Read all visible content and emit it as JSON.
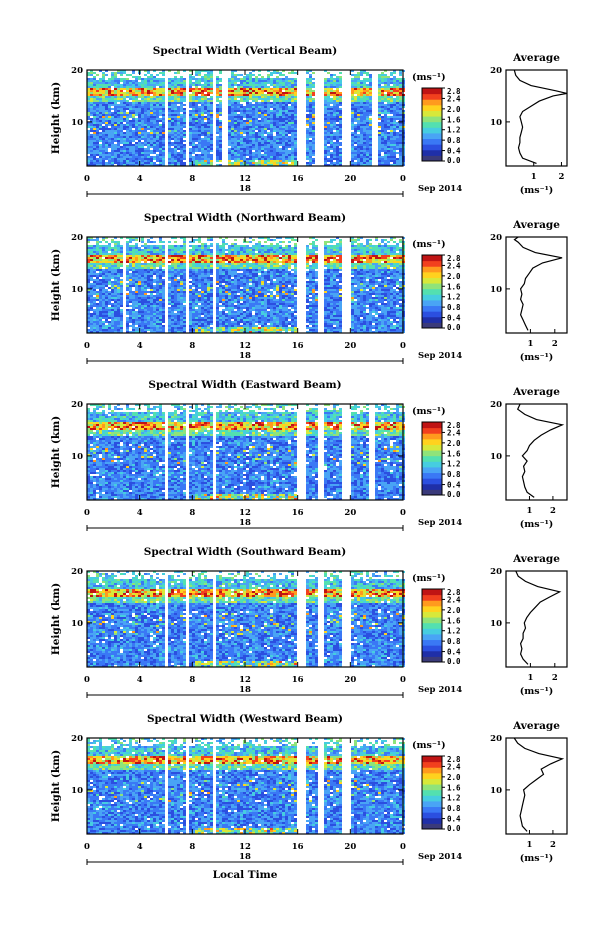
{
  "figure": {
    "date_label": "Sep 2014",
    "xlabel": "Local Time",
    "colorbar_unit": "(ms⁻¹)",
    "average_title": "Average",
    "average_xlabel": "(ms⁻¹)",
    "colormap": [
      "#3a3a7a",
      "#1f2fa8",
      "#2b4fe0",
      "#3a78f5",
      "#49a4f5",
      "#46cde0",
      "#53e0b0",
      "#8fe37a",
      "#d7e83a",
      "#ffd21e",
      "#ff9a1e",
      "#f2401e",
      "#c01414"
    ]
  },
  "chart_data": [
    {
      "type": "heatmap",
      "title": "Spectral Width (Vertical Beam)",
      "ylabel": "Height (km)",
      "x_ticks": [
        "0",
        "4",
        "8",
        "12",
        "16",
        "20",
        "0"
      ],
      "x_range": [
        0,
        24
      ],
      "y_ticks": [
        "10",
        "20"
      ],
      "y_range": [
        1.5,
        20
      ],
      "day_marker": "18",
      "colorbar_ticks": [
        "0.0",
        "0.4",
        "0.8",
        "1.2",
        "1.6",
        "2.0",
        "2.4",
        "2.8"
      ],
      "colorbar_range": [
        0,
        2.8
      ],
      "data_gaps_hours": [
        [
          5.8,
          6.0
        ],
        [
          7.3,
          7.7
        ],
        [
          9.5,
          9.7
        ],
        [
          10.2,
          10.6
        ],
        [
          15.8,
          16.5
        ],
        [
          17.3,
          17.8
        ],
        [
          19.2,
          20.0
        ],
        [
          21.5,
          22.0
        ]
      ],
      "average_profile": {
        "x_ticks": [
          "1",
          "2"
        ],
        "x_range": [
          0,
          2.2
        ],
        "y_ticks": [
          "10",
          "20"
        ],
        "y_range": [
          1.5,
          20
        ],
        "height_km": [
          2,
          3,
          4,
          5,
          6,
          7,
          8,
          9,
          10,
          11,
          12,
          13,
          14,
          15,
          15.5,
          16,
          17,
          18,
          19,
          20
        ],
        "value_ms": [
          1.1,
          0.6,
          0.5,
          0.45,
          0.5,
          0.5,
          0.55,
          0.6,
          0.55,
          0.5,
          0.6,
          0.9,
          1.2,
          1.7,
          2.2,
          1.8,
          0.9,
          0.5,
          0.35,
          0.3
        ]
      }
    },
    {
      "type": "heatmap",
      "title": "Spectral Width (Northward Beam)",
      "ylabel": "Height (km)",
      "x_ticks": [
        "0",
        "4",
        "8",
        "12",
        "16",
        "20",
        "0"
      ],
      "x_range": [
        0,
        24
      ],
      "y_ticks": [
        "10",
        "20"
      ],
      "y_range": [
        1.5,
        20
      ],
      "day_marker": "18",
      "colorbar_ticks": [
        "0.0",
        "0.4",
        "0.8",
        "1.2",
        "1.6",
        "2.0",
        "2.4",
        "2.8"
      ],
      "colorbar_range": [
        0,
        2.8
      ],
      "data_gaps_hours": [
        [
          2.7,
          2.9
        ],
        [
          5.8,
          6.0
        ],
        [
          7.3,
          7.7
        ],
        [
          9.5,
          9.7
        ],
        [
          15.8,
          16.6
        ],
        [
          17.4,
          17.8
        ],
        [
          19.3,
          20.0
        ]
      ],
      "average_profile": {
        "x_ticks": [
          "1",
          "2"
        ],
        "x_range": [
          0,
          2.5
        ],
        "y_ticks": [
          "10",
          "20"
        ],
        "y_range": [
          1.5,
          20
        ],
        "height_km": [
          2,
          3,
          4,
          5,
          6,
          7,
          8,
          9,
          10,
          11,
          12,
          13,
          14,
          15,
          16,
          17,
          18,
          19,
          19.5,
          20
        ],
        "value_ms": [
          0.9,
          0.8,
          0.7,
          0.6,
          0.65,
          0.7,
          0.6,
          0.65,
          0.6,
          0.75,
          0.8,
          0.95,
          1.1,
          1.5,
          2.3,
          1.2,
          0.7,
          0.5,
          0.35,
          0.5
        ]
      }
    },
    {
      "type": "heatmap",
      "title": "Spectral Width (Eastward Beam)",
      "ylabel": "Height (km)",
      "x_ticks": [
        "0",
        "4",
        "8",
        "12",
        "16",
        "20",
        "0"
      ],
      "x_range": [
        0,
        24
      ],
      "y_ticks": [
        "10",
        "20"
      ],
      "y_range": [
        1.5,
        20
      ],
      "day_marker": "18",
      "colorbar_ticks": [
        "0.0",
        "0.4",
        "0.8",
        "1.2",
        "1.6",
        "2.0",
        "2.4",
        "2.8"
      ],
      "colorbar_range": [
        0,
        2.8
      ],
      "data_gaps_hours": [
        [
          5.8,
          6.0
        ],
        [
          7.3,
          7.7
        ],
        [
          9.5,
          9.7
        ],
        [
          15.8,
          16.5
        ],
        [
          17.4,
          17.8
        ],
        [
          19.3,
          19.9
        ],
        [
          21.4,
          21.8
        ]
      ],
      "average_profile": {
        "x_ticks": [
          "1",
          "2"
        ],
        "x_range": [
          0,
          2.6
        ],
        "y_ticks": [
          "10",
          "20"
        ],
        "y_range": [
          1.5,
          20
        ],
        "height_km": [
          2,
          3,
          4,
          5,
          6,
          7,
          8,
          9,
          10,
          11,
          12,
          13,
          14,
          15,
          16,
          17,
          18,
          19,
          20
        ],
        "value_ms": [
          1.2,
          0.9,
          0.8,
          0.75,
          0.7,
          0.8,
          0.75,
          0.9,
          0.7,
          0.9,
          1.0,
          1.2,
          1.5,
          1.9,
          2.4,
          1.3,
          0.8,
          0.5,
          0.6
        ]
      }
    },
    {
      "type": "heatmap",
      "title": "Spectral Width (Southward Beam)",
      "ylabel": "Height (km)",
      "x_ticks": [
        "0",
        "4",
        "8",
        "12",
        "16",
        "20",
        "0"
      ],
      "x_range": [
        0,
        24
      ],
      "y_ticks": [
        "10",
        "20"
      ],
      "y_range": [
        1.5,
        20
      ],
      "day_marker": "18",
      "colorbar_ticks": [
        "0.0",
        "0.4",
        "0.8",
        "1.2",
        "1.6",
        "2.0",
        "2.4",
        "2.8"
      ],
      "colorbar_range": [
        0,
        2.8
      ],
      "data_gaps_hours": [
        [
          5.8,
          6.0
        ],
        [
          7.3,
          7.7
        ],
        [
          9.5,
          9.7
        ],
        [
          15.8,
          16.5
        ],
        [
          17.4,
          17.8
        ],
        [
          19.3,
          19.9
        ]
      ],
      "average_profile": {
        "x_ticks": [
          "1",
          "2"
        ],
        "x_range": [
          0,
          2.5
        ],
        "y_ticks": [
          "10",
          "20"
        ],
        "y_range": [
          1.5,
          20
        ],
        "height_km": [
          2,
          3,
          4,
          5,
          6,
          7,
          8,
          9,
          10,
          11,
          12,
          13,
          14,
          15,
          16,
          17,
          18,
          19,
          20
        ],
        "value_ms": [
          0.9,
          0.7,
          0.6,
          0.65,
          0.6,
          0.7,
          0.7,
          0.8,
          0.75,
          0.85,
          1.0,
          1.2,
          1.4,
          1.8,
          2.2,
          1.3,
          0.8,
          0.5,
          0.4
        ]
      }
    },
    {
      "type": "heatmap",
      "title": "Spectral Width (Westward Beam)",
      "ylabel": "Height (km)",
      "x_ticks": [
        "0",
        "4",
        "8",
        "12",
        "16",
        "20",
        "0"
      ],
      "x_range": [
        0,
        24
      ],
      "y_ticks": [
        "10",
        "20"
      ],
      "y_range": [
        1.5,
        20
      ],
      "day_marker": "18",
      "colorbar_ticks": [
        "0.0",
        "0.4",
        "0.8",
        "1.2",
        "1.6",
        "2.0",
        "2.4",
        "2.8"
      ],
      "colorbar_range": [
        0,
        2.8
      ],
      "data_gaps_hours": [
        [
          5.8,
          6.0
        ],
        [
          7.3,
          7.7
        ],
        [
          9.5,
          9.7
        ],
        [
          15.8,
          16.5
        ],
        [
          17.4,
          17.8
        ],
        [
          19.3,
          19.9
        ]
      ],
      "average_profile": {
        "x_ticks": [
          "1",
          "2"
        ],
        "x_range": [
          0,
          2.6
        ],
        "y_ticks": [
          "10",
          "20"
        ],
        "y_range": [
          1.5,
          20
        ],
        "height_km": [
          2,
          3,
          4,
          5,
          6,
          7,
          8,
          9,
          10,
          11,
          12,
          13,
          14,
          15,
          16,
          17,
          18,
          19,
          20
        ],
        "value_ms": [
          0.9,
          0.7,
          0.65,
          0.6,
          0.65,
          0.7,
          0.75,
          0.8,
          0.75,
          1.0,
          1.3,
          1.6,
          1.5,
          1.9,
          2.4,
          1.4,
          0.8,
          0.5,
          0.35
        ]
      }
    }
  ]
}
